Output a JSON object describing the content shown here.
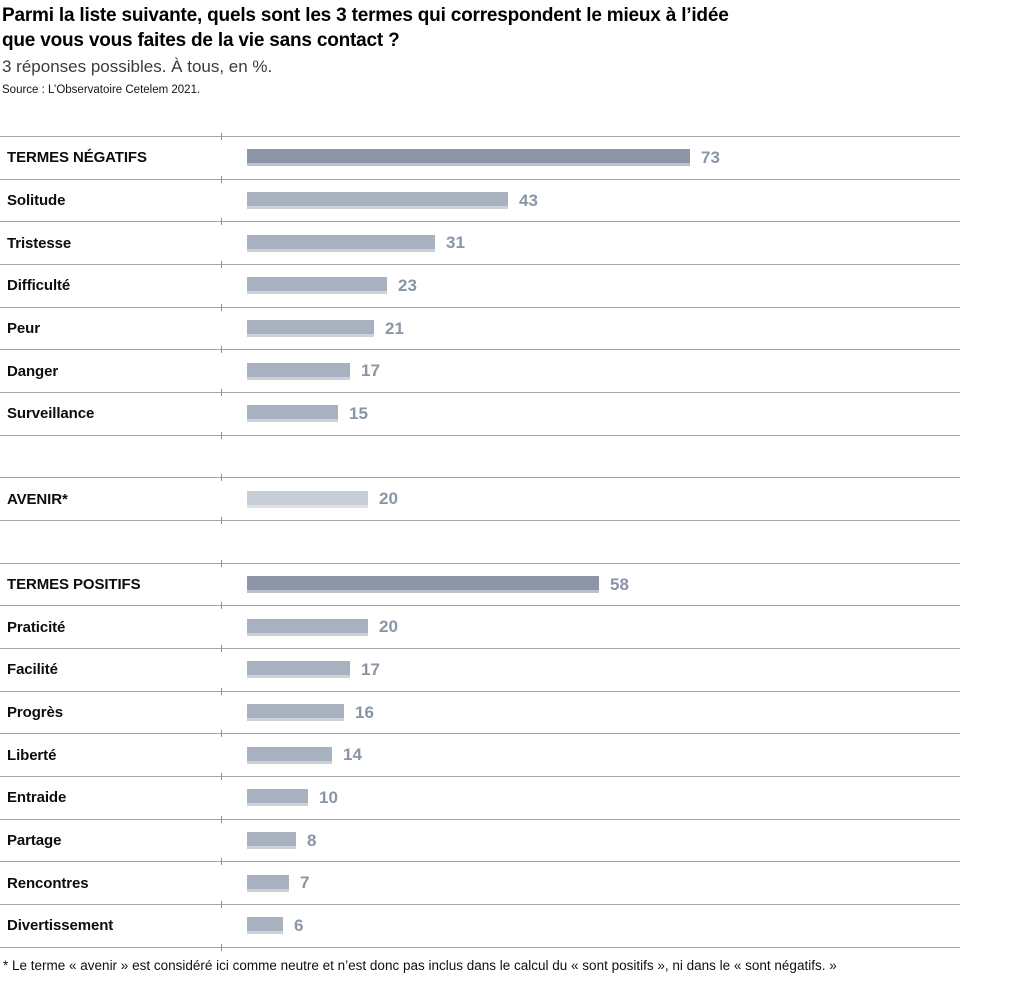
{
  "header": {
    "title_lines": [
      "Parmi la liste suivante, quels sont les 3 termes qui correspondent le mieux à l’idée",
      "que vous vous faites de la vie sans contact ?"
    ],
    "subtitle": "3 réponses possibles. À tous, en %.",
    "source": "Source : L’Observatoire Cetelem 2021."
  },
  "chart_data": {
    "type": "bar",
    "orientation": "horizontal",
    "value_unit": "%",
    "xlim": [
      0,
      79
    ],
    "grid": "row-separators-only",
    "legend": "none",
    "rows": [
      {
        "label": "TERMES NÉGATIFS",
        "value": 73,
        "style": "group"
      },
      {
        "label": "Solitude",
        "value": 43,
        "style": "item"
      },
      {
        "label": "Tristesse",
        "value": 31,
        "style": "item"
      },
      {
        "label": "Difficulté",
        "value": 23,
        "style": "item"
      },
      {
        "label": "Peur",
        "value": 21,
        "style": "item"
      },
      {
        "label": "Danger",
        "value": 17,
        "style": "item"
      },
      {
        "label": "Surveillance",
        "value": 15,
        "style": "item"
      },
      {
        "label": "",
        "value": null,
        "style": "spacer"
      },
      {
        "label": "AVENIR*",
        "value": 20,
        "style": "neutral"
      },
      {
        "label": "",
        "value": null,
        "style": "spacer"
      },
      {
        "label": "TERMES POSITIFS",
        "value": 58,
        "style": "group"
      },
      {
        "label": "Praticité",
        "value": 20,
        "style": "item"
      },
      {
        "label": "Facilité",
        "value": 17,
        "style": "item"
      },
      {
        "label": "Progrès",
        "value": 16,
        "style": "item"
      },
      {
        "label": "Liberté",
        "value": 14,
        "style": "item"
      },
      {
        "label": "Entraide",
        "value": 10,
        "style": "item"
      },
      {
        "label": "Partage",
        "value": 8,
        "style": "item"
      },
      {
        "label": "Rencontres",
        "value": 7,
        "style": "item"
      },
      {
        "label": "Divertissement",
        "value": 6,
        "style": "item"
      }
    ],
    "colors": {
      "group_bar": "#8c96a8",
      "item_bar": "#a8b1c0",
      "neutral_bar": "#c7cdd7",
      "value_text": "#8a95a7"
    }
  },
  "footnote": "* Le terme « avenir » est considéré ici comme neutre et n’est donc pas inclus dans le calcul du « sont positifs », ni dans le « sont négatifs. »"
}
